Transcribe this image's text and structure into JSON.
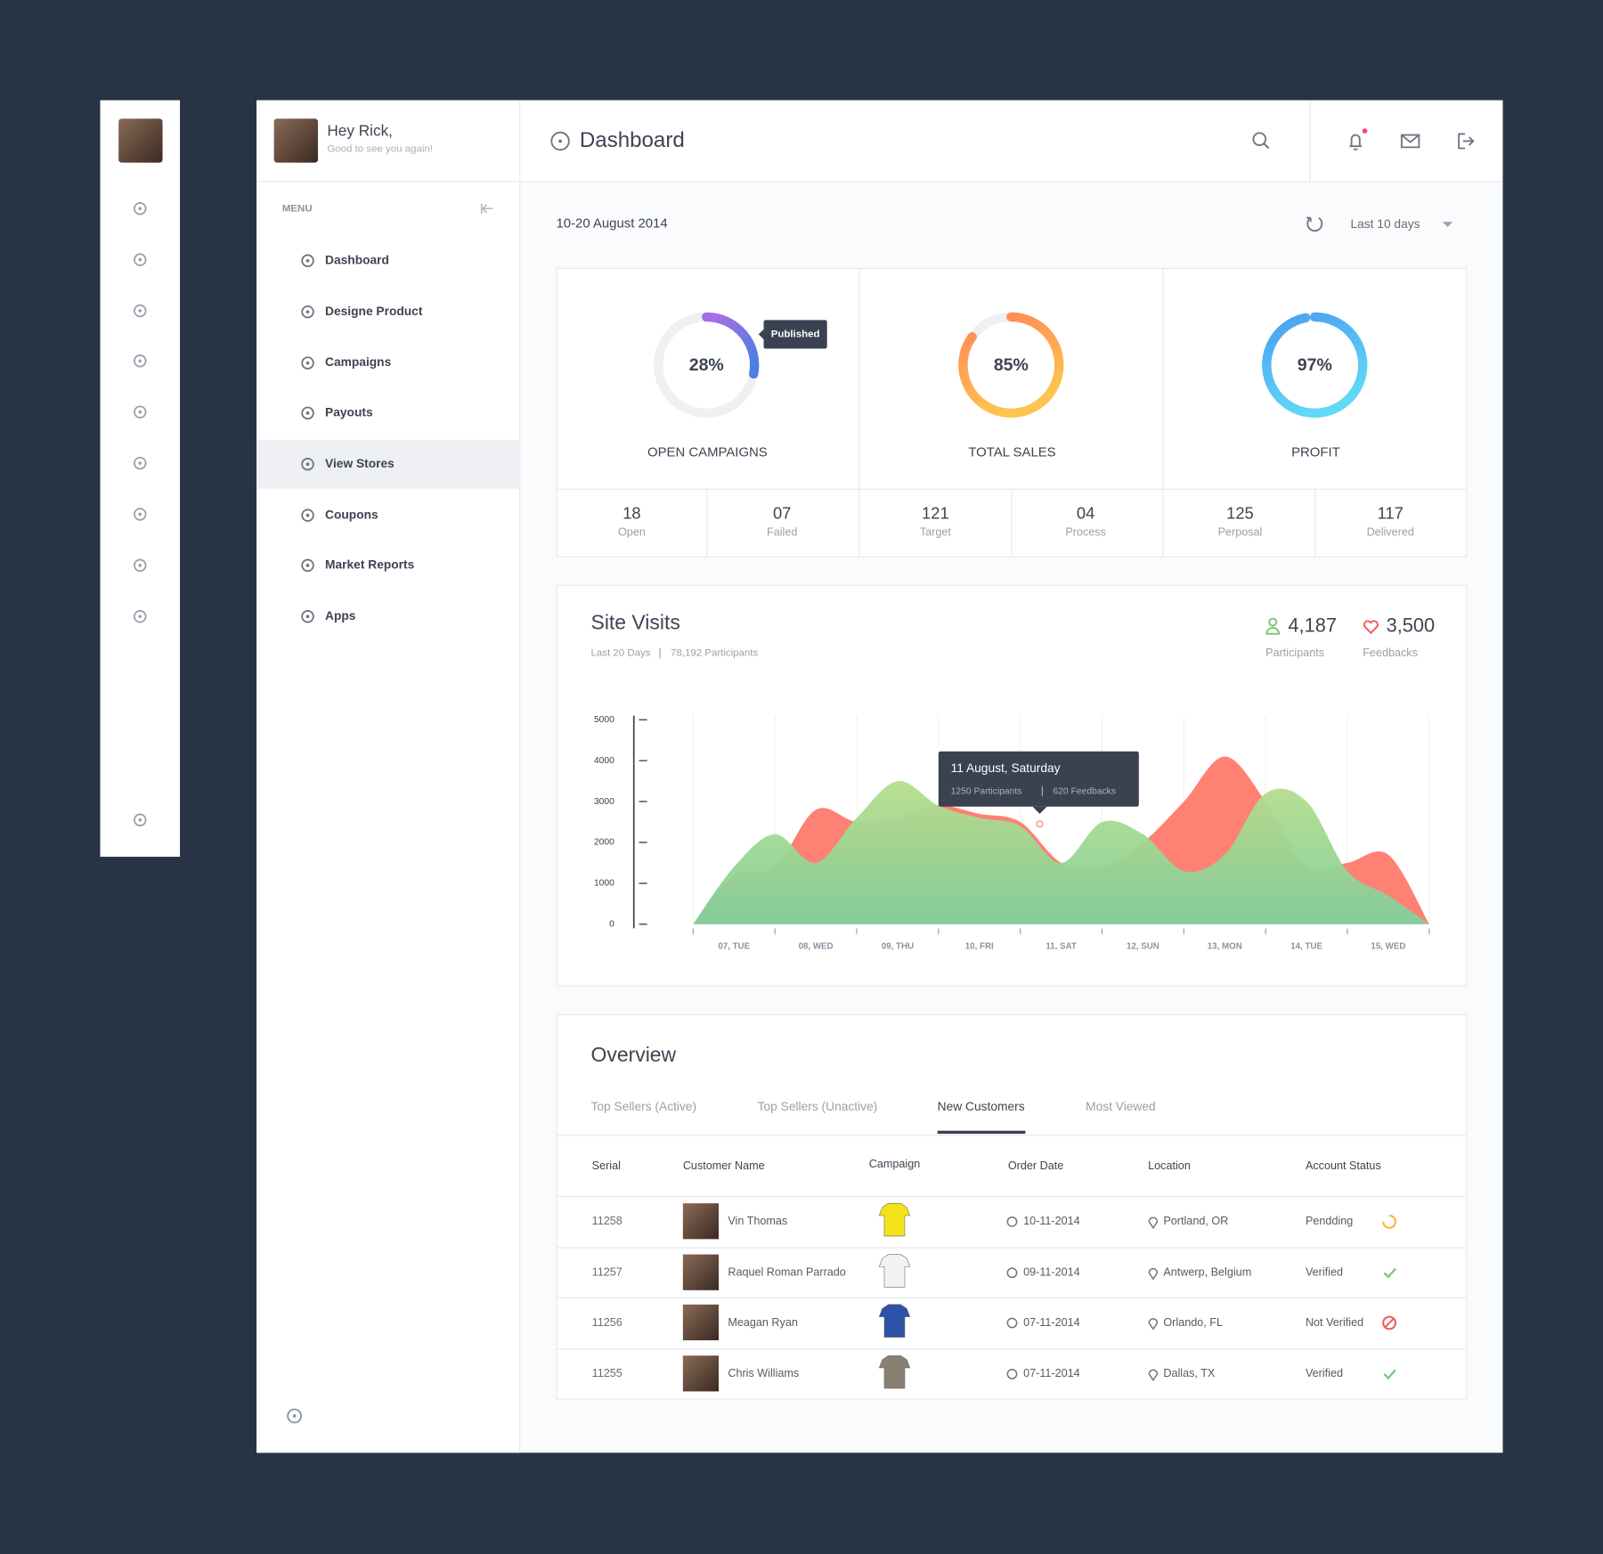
{
  "sidebar": {
    "greeting": "Hey Rick,",
    "subtitle": "Good to see you again!",
    "menu_label": "MENU",
    "items": [
      {
        "label": "Dashboard"
      },
      {
        "label": "Designe Product"
      },
      {
        "label": "Campaigns"
      },
      {
        "label": "Payouts"
      },
      {
        "label": "View Stores",
        "active": true
      },
      {
        "label": "Coupons"
      },
      {
        "label": "Market Reports"
      },
      {
        "label": "Apps"
      }
    ]
  },
  "header": {
    "title": "Dashboard"
  },
  "toolbar": {
    "date_range": "10-20 August 2014",
    "period": "Last 10 days"
  },
  "stats": [
    {
      "type": "donut",
      "value": 28,
      "value_label": "28%",
      "label": "OPEN CAMPAIGNS",
      "tooltip": "Published",
      "colors": [
        "#a86ce6",
        "#4d7fe0"
      ],
      "counts": [
        {
          "value": "18",
          "label": "Open"
        },
        {
          "value": "07",
          "label": "Failed"
        }
      ]
    },
    {
      "type": "donut",
      "value": 85,
      "value_label": "85%",
      "label": "TOTAL SALES",
      "colors": [
        "#ff8458",
        "#ffc44f"
      ],
      "counts": [
        {
          "value": "121",
          "label": "Target"
        },
        {
          "value": "04",
          "label": "Process"
        }
      ]
    },
    {
      "type": "donut",
      "value": 97,
      "value_label": "97%",
      "label": "PROFIT",
      "colors": [
        "#4b9ef0",
        "#5fd9f6"
      ],
      "counts": [
        {
          "value": "125",
          "label": "Perposal"
        },
        {
          "value": "117",
          "label": "Delivered"
        }
      ]
    }
  ],
  "site_visits": {
    "title": "Site Visits",
    "period": "Last 20 Days",
    "participants_total": "78,192 Participants",
    "chart": {
      "type": "area",
      "ylim": [
        0,
        5000
      ],
      "yticks": [
        0,
        1000,
        2000,
        3000,
        4000,
        5000
      ],
      "categories": [
        null,
        "07, TUE",
        null,
        "08, WED",
        null,
        "09, THU",
        null,
        "10, FRI",
        null,
        "11, SAT",
        null,
        "12, SUN",
        null,
        "13, MON",
        null,
        "14, TUE",
        null,
        "15, WED",
        null
      ],
      "series": [
        {
          "name": "Feedbacks",
          "total": "3,500",
          "color": "#ff7a6c",
          "values": [
            0,
            1200,
            1400,
            2800,
            2500,
            2600,
            2900,
            2700,
            2500,
            1500,
            1400,
            2000,
            3000,
            4100,
            3000,
            1400,
            1500,
            1700,
            0
          ]
        },
        {
          "name": "Participants",
          "total": "4,187",
          "color": "#a8da8c",
          "values": [
            0,
            1400,
            2200,
            1500,
            2600,
            3500,
            2900,
            2600,
            2400,
            1500,
            2500,
            2200,
            1300,
            1700,
            3200,
            3000,
            1300,
            700,
            0
          ]
        }
      ],
      "tooltip": {
        "title": "11 August, Saturday",
        "lines": [
          "1250 Participants",
          "620 Feedbacks"
        ]
      }
    }
  },
  "overview": {
    "title": "Overview",
    "tabs": [
      {
        "label": "Top Sellers (Active)"
      },
      {
        "label": "Top Sellers (Unactive)"
      },
      {
        "label": "New Customers",
        "active": true
      },
      {
        "label": "Most Viewed"
      }
    ],
    "table": {
      "columns": [
        "Serial",
        "Customer Name",
        "Campaign",
        "Order Date",
        "Location",
        "Account Status"
      ],
      "rows": [
        [
          "11258",
          "Vin Thomas",
          "10-11-2014",
          "Portland, OR",
          "Pendding"
        ],
        [
          "11257",
          "Raquel Roman Parrado",
          "09-11-2014",
          "Antwerp, Belgium",
          "Verified"
        ],
        [
          "11256",
          "Meagan Ryan",
          "07-11-2014",
          "Orlando, FL",
          "Not Verified"
        ],
        [
          "11255",
          "Chris Williams",
          "07-11-2014",
          "Dallas, TX",
          "Verified"
        ]
      ]
    }
  }
}
